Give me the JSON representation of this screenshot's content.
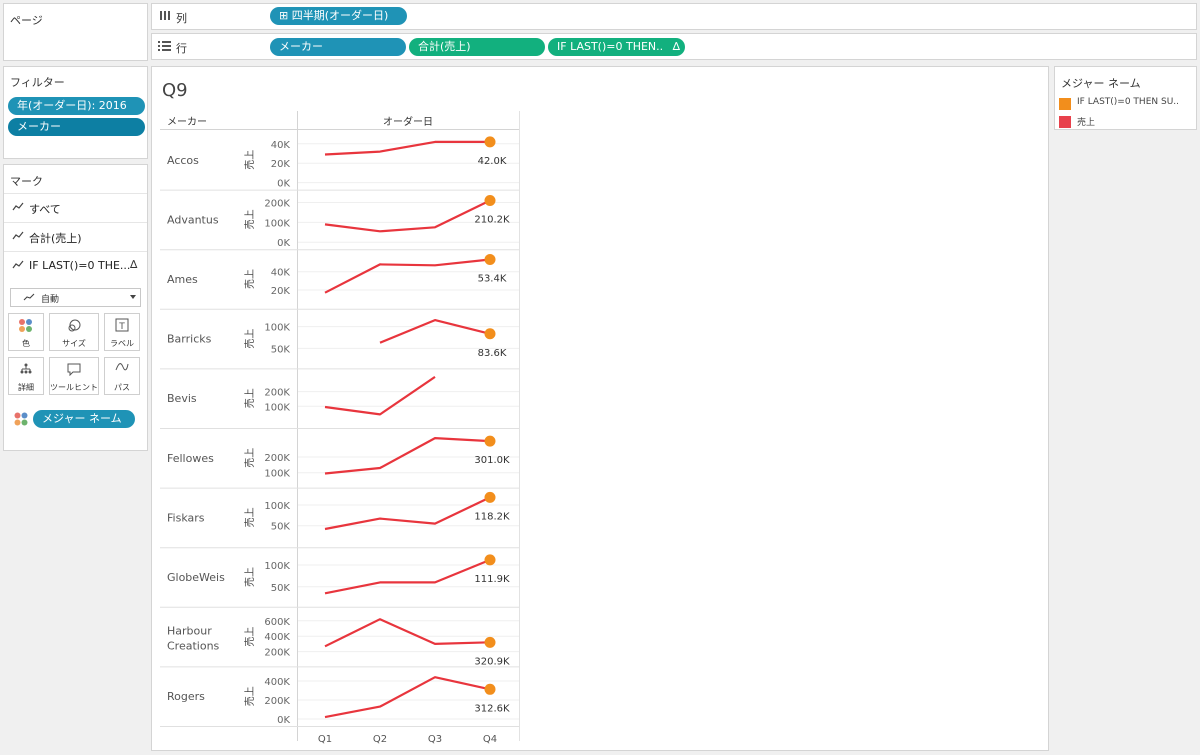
{
  "pages_panel": {
    "title": "ページ"
  },
  "shelves": {
    "columns": {
      "icon": "columns-icon",
      "label": "列",
      "pills": [
        "⊞ 四半期(オーダー日)"
      ]
    },
    "rows": {
      "icon": "rows-icon",
      "label": "行",
      "pills": [
        "メーカー",
        "合計(売上)",
        "IF LAST()=0 THEN.."
      ],
      "delta": "∆"
    }
  },
  "filters": {
    "title": "フィルター",
    "pills": [
      "年(オーダー日): 2016",
      "メーカー"
    ]
  },
  "marks": {
    "title": "マーク",
    "rows": [
      "すべて",
      "合計(売上)",
      "IF LAST()=0 THE..."
    ],
    "delta": "∆",
    "mark_type": "自動",
    "buttons": [
      "色",
      "サイズ",
      "ラベル",
      "詳細",
      "ツールヒント",
      "パス"
    ],
    "color_pill": "メジャー ネーム"
  },
  "legend": {
    "title": "メジャー ネーム",
    "items": [
      {
        "label": "IF LAST()=0 THEN SU..",
        "color": "#f28e1c"
      },
      {
        "label": "売上",
        "color": "#e8414c"
      }
    ]
  },
  "worksheet": {
    "title": "Q9",
    "col_header_maker": "メーカー",
    "col_header_date": "オーダー日",
    "axis_title": "売上",
    "line_color": "#e8353d",
    "dot_color": "#f28e1c"
  },
  "chart_data": {
    "type": "line",
    "title": "Q9",
    "xlabel": "オーダー日",
    "ylabel": "売上",
    "categories": [
      "Q1",
      "Q2",
      "Q3",
      "Q4"
    ],
    "panels": [
      {
        "name": "Accos",
        "ymin": 0,
        "ymax": 47000,
        "ticks": [
          {
            "v": 40000,
            "t": "40K"
          },
          {
            "v": 20000,
            "t": "20K"
          },
          {
            "v": 0,
            "t": "0K"
          }
        ],
        "values": [
          29000,
          32000,
          42000,
          42000
        ],
        "label": "42.0K"
      },
      {
        "name": "Advantus",
        "ymin": 0,
        "ymax": 230000,
        "ticks": [
          {
            "v": 200000,
            "t": "200K"
          },
          {
            "v": 100000,
            "t": "100K"
          },
          {
            "v": 0,
            "t": "0K"
          }
        ],
        "values": [
          90000,
          55000,
          75000,
          210200
        ],
        "label": "210.2K"
      },
      {
        "name": "Ames",
        "ymin": 7000,
        "ymax": 57000,
        "ticks": [
          {
            "v": 40000,
            "t": "40K"
          },
          {
            "v": 20000,
            "t": "20K"
          }
        ],
        "values": [
          17000,
          48000,
          47000,
          53400
        ],
        "label": "53.4K"
      },
      {
        "name": "Barricks",
        "ymin": 20000,
        "ymax": 125000,
        "ticks": [
          {
            "v": 100000,
            "t": "100K"
          },
          {
            "v": 50000,
            "t": "50K"
          }
        ],
        "values": [
          null,
          63000,
          115000,
          83600
        ],
        "label": "83.6K"
      },
      {
        "name": "Bevis",
        "ymin": 0,
        "ymax": 310000,
        "ticks": [
          {
            "v": 200000,
            "t": "200K"
          },
          {
            "v": 100000,
            "t": "100K"
          }
        ],
        "values": [
          95000,
          45000,
          300000,
          null
        ],
        "label": ""
      },
      {
        "name": "Fellowes",
        "ymin": 50000,
        "ymax": 340000,
        "ticks": [
          {
            "v": 200000,
            "t": "200K"
          },
          {
            "v": 100000,
            "t": "100K"
          }
        ],
        "values": [
          95000,
          130000,
          320000,
          301000
        ],
        "label": "301.0K"
      },
      {
        "name": "Fiskars",
        "ymin": 15000,
        "ymax": 125000,
        "ticks": [
          {
            "v": 100000,
            "t": "100K"
          },
          {
            "v": 50000,
            "t": "50K"
          }
        ],
        "values": [
          42000,
          67000,
          55000,
          118200
        ],
        "label": "118.2K"
      },
      {
        "name": "GlobeWeis",
        "ymin": 20000,
        "ymax": 125000,
        "ticks": [
          {
            "v": 100000,
            "t": "100K"
          },
          {
            "v": 50000,
            "t": "50K"
          }
        ],
        "values": [
          35000,
          60000,
          60000,
          111900
        ],
        "label": "111.9K"
      },
      {
        "name": "Harbour Creations",
        "ymin": 100000,
        "ymax": 690000,
        "ticks": [
          {
            "v": 600000,
            "t": "600K"
          },
          {
            "v": 400000,
            "t": "400K"
          },
          {
            "v": 200000,
            "t": "200K"
          }
        ],
        "values": [
          270000,
          620000,
          300000,
          320900
        ],
        "label": "320.9K"
      },
      {
        "name": "Rogers",
        "ymin": 0,
        "ymax": 480000,
        "ticks": [
          {
            "v": 400000,
            "t": "400K"
          },
          {
            "v": 200000,
            "t": "200K"
          },
          {
            "v": 0,
            "t": "0K"
          }
        ],
        "values": [
          20000,
          130000,
          440000,
          312600
        ],
        "label": "312.6K"
      }
    ]
  }
}
